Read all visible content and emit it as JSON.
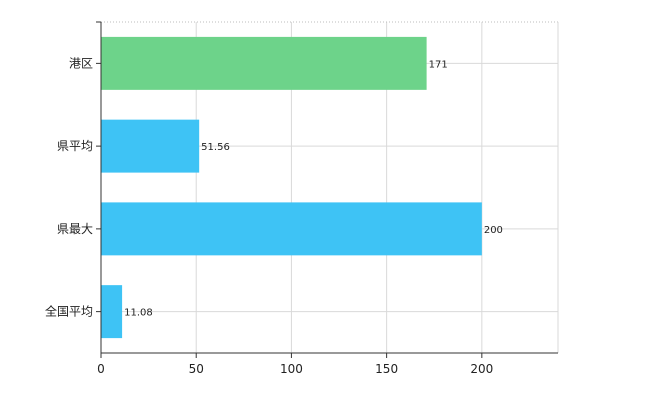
{
  "chart_data": {
    "type": "bar",
    "orientation": "horizontal",
    "categories": [
      "港区",
      "県平均",
      "県最大",
      "全国平均"
    ],
    "values": [
      171,
      51.56,
      200,
      11.08
    ],
    "value_labels": [
      "171",
      "51.56",
      "200",
      "11.08"
    ],
    "bar_colors": [
      "#6dd38a",
      "#3ec3f5",
      "#3ec3f5",
      "#3ec3f5"
    ],
    "xlim": [
      0,
      240
    ],
    "x_ticks": [
      0,
      50,
      100,
      150,
      200
    ],
    "grid": true,
    "title": "",
    "xlabel": "",
    "ylabel": ""
  }
}
